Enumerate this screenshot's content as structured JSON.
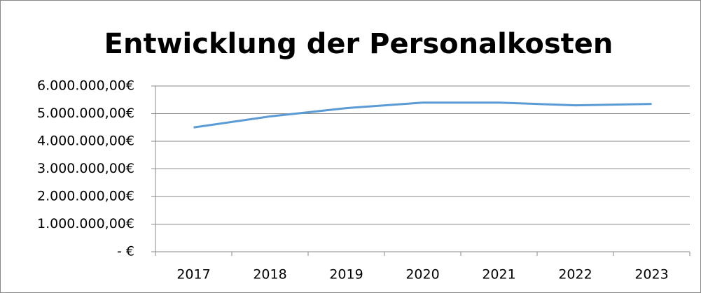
{
  "chart_data": {
    "type": "line",
    "title": "Entwicklung der Personalkosten",
    "categories": [
      "2017",
      "2018",
      "2019",
      "2020",
      "2021",
      "2022",
      "2023"
    ],
    "series": [
      {
        "name": "Personalkosten",
        "color": "#5b9bd5",
        "values": [
          4500000,
          4900000,
          5200000,
          5400000,
          5400000,
          5300000,
          5350000
        ]
      }
    ],
    "ylim": [
      0,
      6000000
    ],
    "yticks": [
      {
        "value": 0,
        "label": "-   €"
      },
      {
        "value": 1000000,
        "label": "1.000.000,00€"
      },
      {
        "value": 2000000,
        "label": "2.000.000,00€"
      },
      {
        "value": 3000000,
        "label": "3.000.000,00€"
      },
      {
        "value": 4000000,
        "label": "4.000.000,00€"
      },
      {
        "value": 5000000,
        "label": "5.000.000,00€"
      },
      {
        "value": 6000000,
        "label": "6.000.000,00€"
      }
    ],
    "grid": true
  }
}
